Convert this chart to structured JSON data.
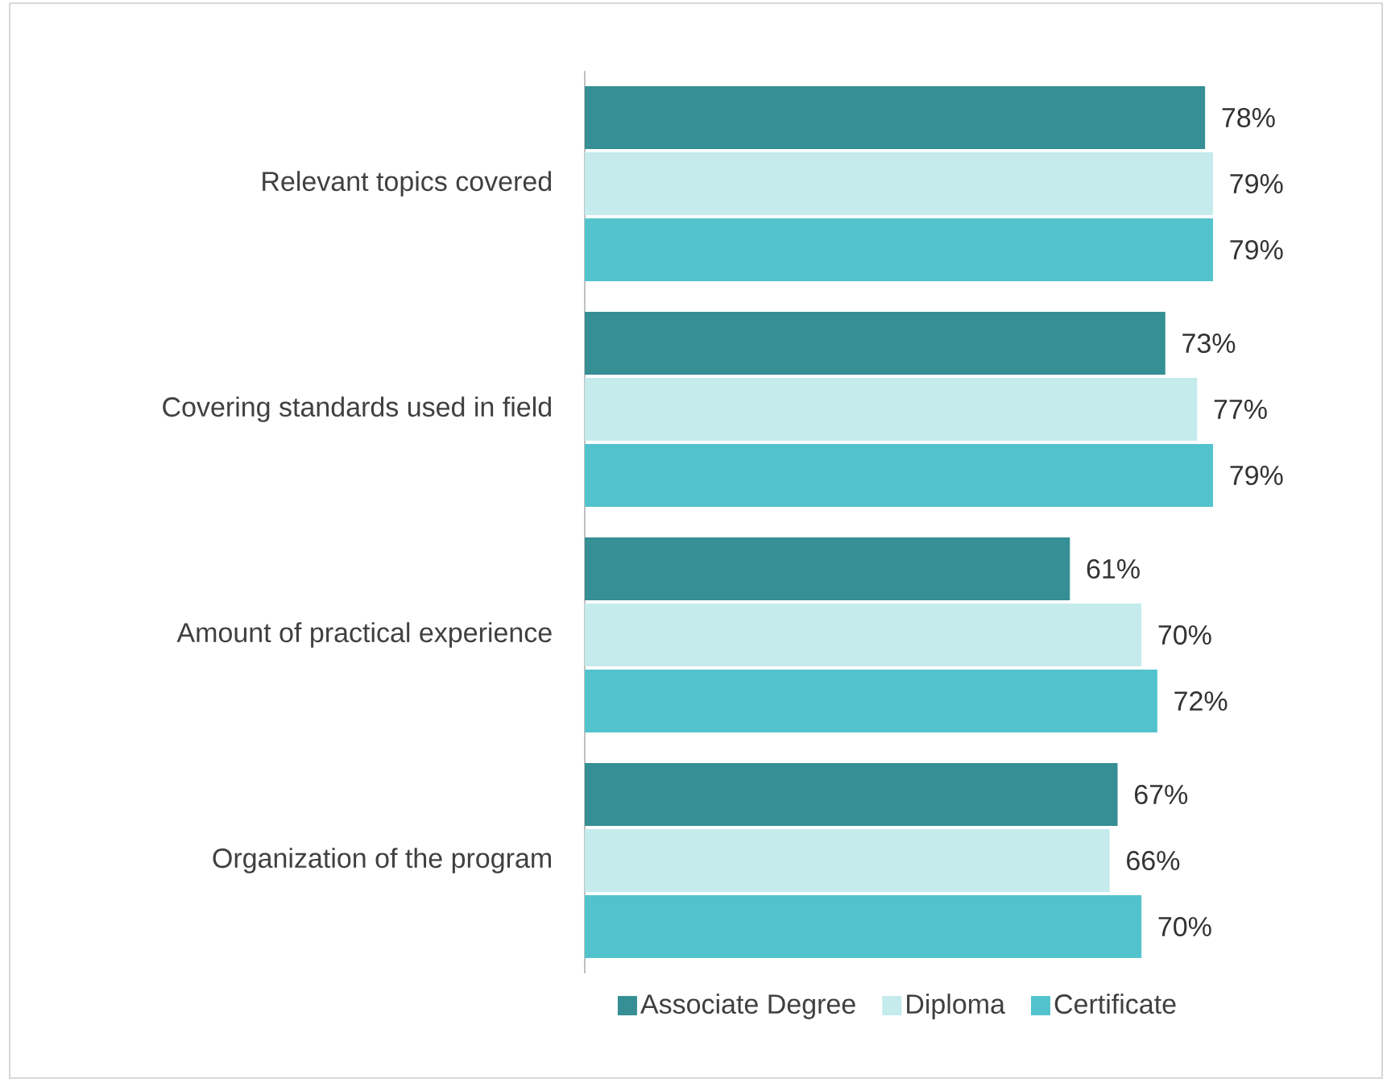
{
  "chart_data": {
    "type": "bar",
    "orientation": "horizontal",
    "categories": [
      "Relevant topics covered",
      "Covering standards used in field",
      "Amount of practical experience",
      "Organization of the program"
    ],
    "series": [
      {
        "name": "Associate Degree",
        "color": "#358f94",
        "values": [
          78,
          73,
          61,
          67
        ],
        "value_labels": [
          "78%",
          "73%",
          "61%",
          "67%"
        ]
      },
      {
        "name": "Diploma",
        "color": "#c5ebec",
        "values": [
          79,
          77,
          70,
          66
        ],
        "value_labels": [
          "79%",
          "77%",
          "70%",
          "66%"
        ]
      },
      {
        "name": "Certificate",
        "color": "#52c3cc",
        "values": [
          79,
          79,
          72,
          70
        ],
        "value_labels": [
          "79%",
          "79%",
          "72%",
          "70%"
        ]
      }
    ],
    "legend": "bottom",
    "grid": false
  }
}
